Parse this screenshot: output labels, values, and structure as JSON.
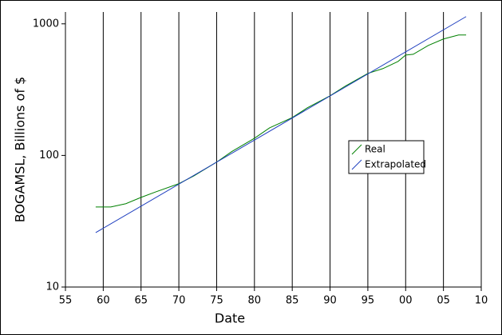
{
  "chart_data": {
    "type": "line",
    "x_label": "Date",
    "y_label": "BOGAMSL, Billions of $",
    "xlim": [
      1955,
      2010
    ],
    "ylim": [
      10,
      1230
    ],
    "log_y": true,
    "grid_x": true,
    "legend": "center-right",
    "xticks": [
      {
        "value": 1955,
        "label": "55"
      },
      {
        "value": 1960,
        "label": "60"
      },
      {
        "value": 1965,
        "label": "65"
      },
      {
        "value": 1970,
        "label": "70"
      },
      {
        "value": 1975,
        "label": "75"
      },
      {
        "value": 1980,
        "label": "80"
      },
      {
        "value": 1985,
        "label": "85"
      },
      {
        "value": 1990,
        "label": "90"
      },
      {
        "value": 1995,
        "label": "95"
      },
      {
        "value": 2000,
        "label": "00"
      },
      {
        "value": 2005,
        "label": "05"
      },
      {
        "value": 2010,
        "label": "10"
      }
    ],
    "yticks": [
      10,
      100,
      1000
    ],
    "series": [
      {
        "name": "Real",
        "color": "#008000",
        "x": [
          1959,
          1961,
          1963,
          1965,
          1967,
          1970,
          1972,
          1975,
          1977,
          1980,
          1982,
          1985,
          1987,
          1990,
          1992,
          1995,
          1997,
          1999,
          2000,
          2001,
          2003,
          2005,
          2007,
          2008
        ],
        "values": [
          40.6,
          40.6,
          43,
          48,
          53,
          61,
          70,
          89,
          107,
          135,
          162,
          194,
          230,
          284,
          336,
          420,
          457,
          518,
          579,
          587,
          685,
          767,
          822,
          822
        ]
      },
      {
        "name": "Extrapolated",
        "color": "#1f3fbf",
        "x": [
          1959,
          2008
        ],
        "values": [
          25.9,
          1135
        ]
      }
    ]
  }
}
